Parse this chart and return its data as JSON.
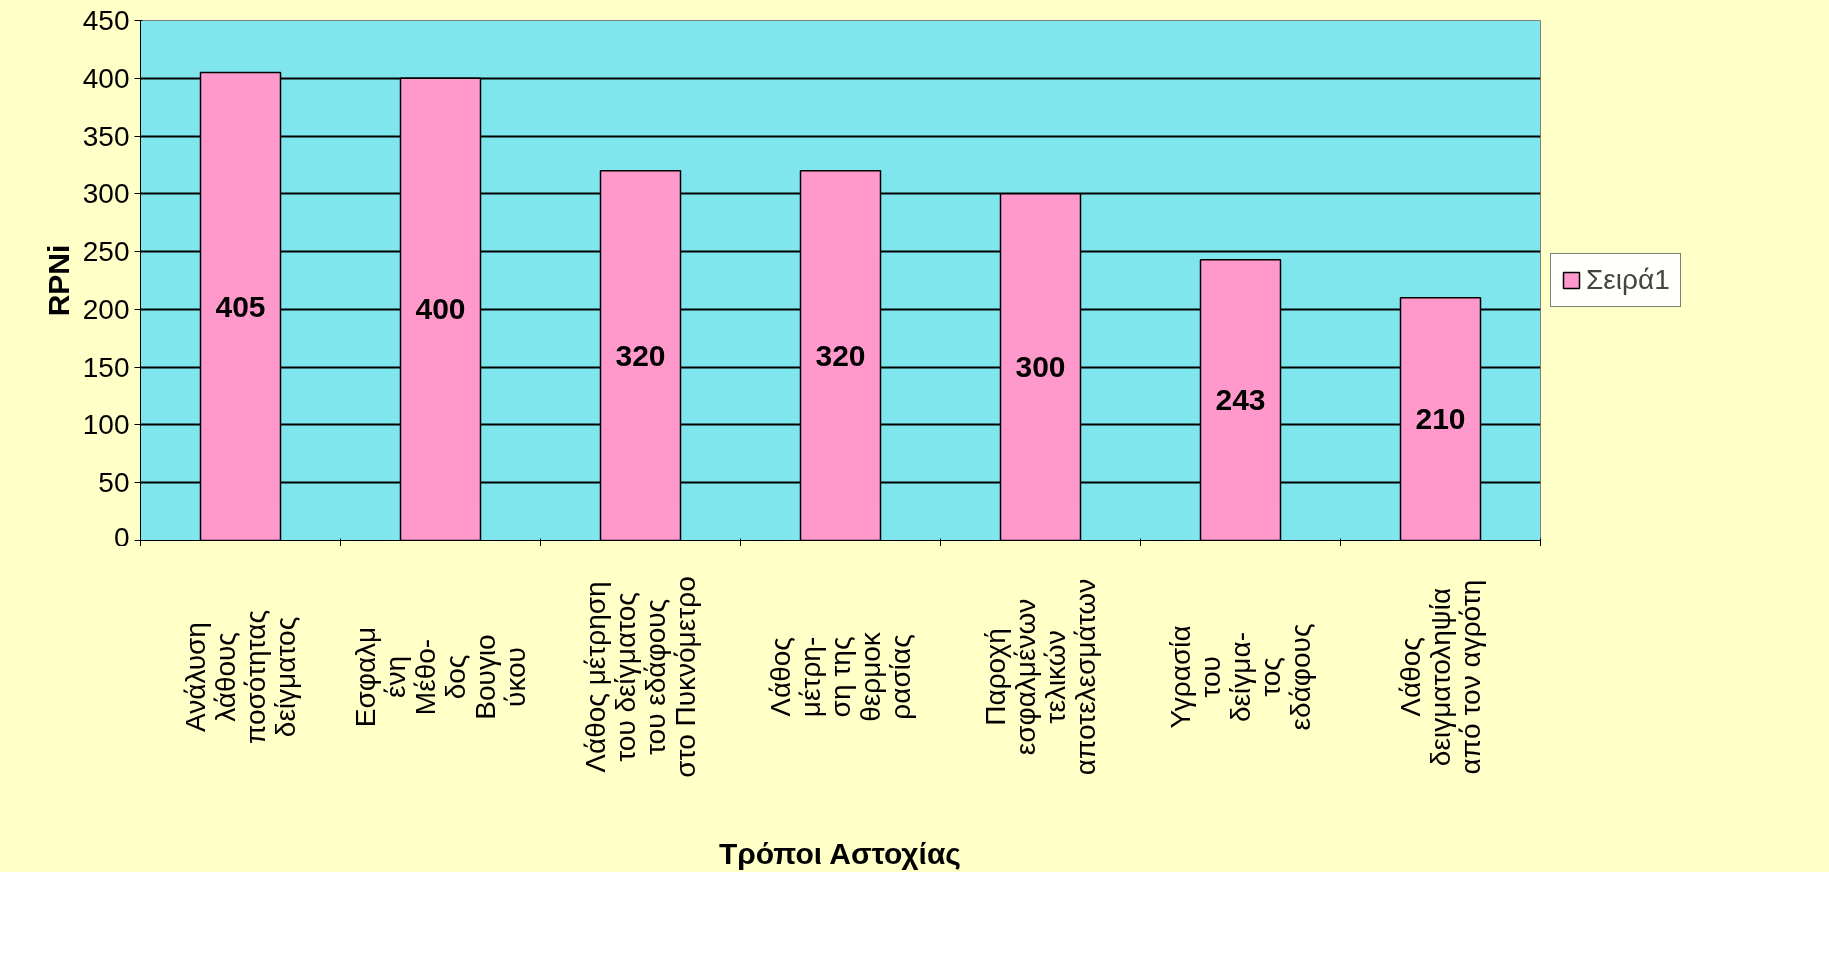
{
  "chart_data": {
    "type": "bar",
    "xlabel": "Τρόποι Αστοχίας",
    "ylabel": "RPNi",
    "categories": [
      "Ανάλυση\nλάθους\nποσότητας\nδείγματος",
      "Εσφαλμ\nένη\nΜέθο-\nδος\nΒουγιο\nύκου",
      "Λάθος μέτρηση\nτου δείγματος\nτου εδάφους\nστο Πυκνόμετρο",
      "Λάθος\nμέτρη-\nση της\nθερμοκ\nρασίας",
      "Παροχή\nεσφαλμένων\nτελικών\nαποτελεσμάτων",
      "Υγρασία\nτου\nδείγμα-\nτος\nεδάφους",
      "Λάθος\nδειγματοληψία\nαπό τον αγρότη"
    ],
    "series": [
      {
        "name": "Σειρά1",
        "color": "#ff99cc",
        "values": [
          405,
          400,
          320,
          320,
          300,
          243,
          210
        ]
      }
    ],
    "ylim": [
      0,
      450
    ],
    "yticks": [
      0,
      50,
      100,
      150,
      200,
      250,
      300,
      350,
      400,
      450
    ],
    "grid": "y",
    "legend": "right",
    "data_labels": true
  }
}
